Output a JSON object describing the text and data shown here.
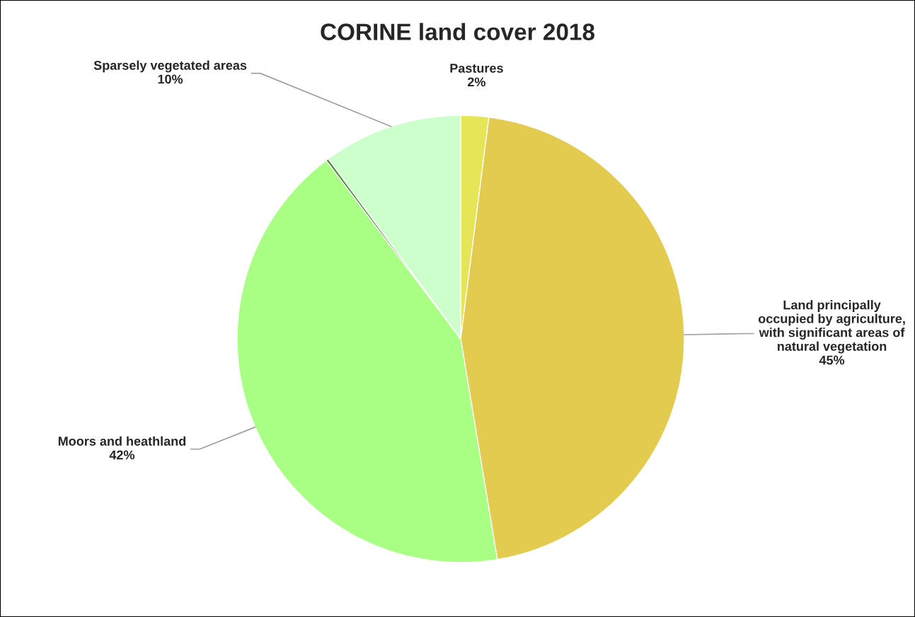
{
  "chart_data": {
    "type": "pie",
    "title": "CORINE land cover 2018",
    "categories": [
      "Pastures",
      "Land principally occupied by agriculture, with significant areas of natural vegetation",
      "Moors and heathland",
      null,
      "Sparsely vegetated areas"
    ],
    "values": [
      2,
      45,
      42,
      0.2,
      10
    ],
    "value_labels": [
      "2%",
      "45%",
      "42%",
      null,
      "10%"
    ],
    "colors": [
      "#e6e457",
      "#e3cb4f",
      "#a8ff84",
      "#4f8f3a",
      "#ccffcc"
    ],
    "legend": false
  }
}
